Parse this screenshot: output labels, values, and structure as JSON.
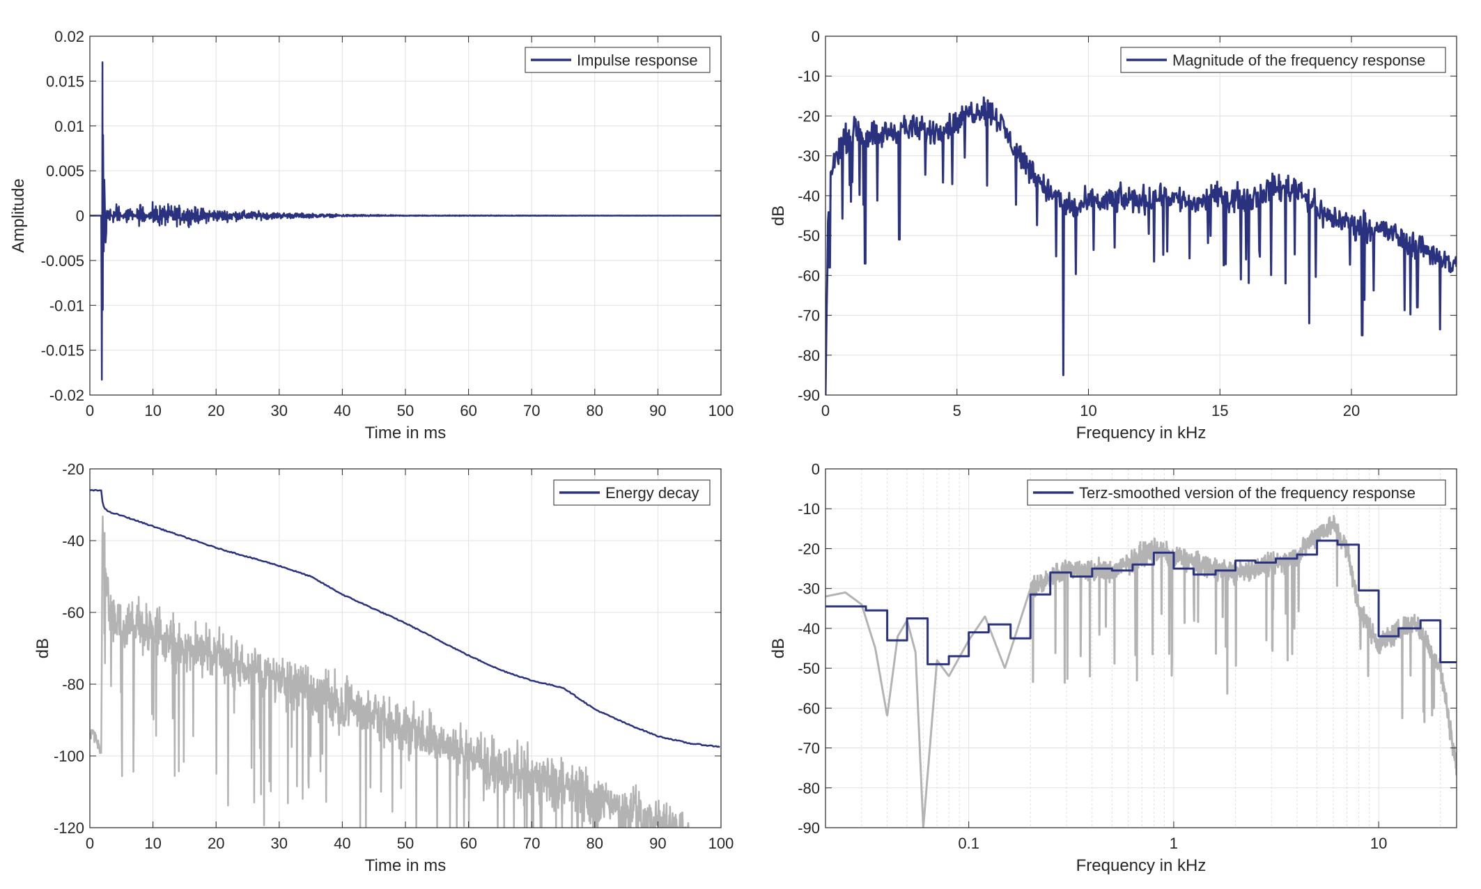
{
  "colors": {
    "series_blue": "#2a3280",
    "series_gray": "#b3b3b3",
    "axis": "#262626",
    "grid": "#e1e1e1",
    "background": "#ffffff"
  },
  "chart_data": [
    {
      "type": "line",
      "title": "",
      "xlabel": "Time in ms",
      "ylabel": "Amplitude",
      "xlim": [
        0,
        100
      ],
      "ylim": [
        -0.02,
        0.02
      ],
      "x_scale": "linear",
      "x_ticks": [
        0,
        10,
        20,
        30,
        40,
        50,
        60,
        70,
        80,
        90,
        100
      ],
      "x_tick_labels": [
        "0",
        "10",
        "20",
        "30",
        "40",
        "50",
        "60",
        "70",
        "80",
        "90",
        "100"
      ],
      "y_ticks": [
        -0.02,
        -0.015,
        -0.01,
        -0.005,
        0,
        0.005,
        0.01,
        0.015,
        0.02
      ],
      "y_tick_labels": [
        "-0.02",
        "-0.015",
        "-0.01",
        "-0.005",
        "0",
        "0.005",
        "0.01",
        "0.015",
        "0.02"
      ],
      "grid": true,
      "legend": {
        "position": "top-right",
        "entries": [
          "Impulse response"
        ]
      },
      "series": [
        {
          "name": "Impulse response",
          "color": "#2a3280",
          "description_points": {
            "x": [
              0,
              1.8,
              1.9,
              2.0,
              2.05,
              2.1,
              2.2,
              2.3,
              2.5,
              3,
              4,
              6,
              8,
              10,
              15,
              20,
              30,
              40,
              50,
              100
            ],
            "y": [
              0,
              0,
              -0.0183,
              0.0171,
              -0.0105,
              0.009,
              -0.004,
              0.004,
              -0.003,
              0.0025,
              -0.0025,
              0.002,
              -0.0018,
              0.0015,
              0.0012,
              0.0008,
              0.0004,
              0.00015,
              5e-05,
              0
            ]
          }
        }
      ]
    },
    {
      "type": "line",
      "title": "",
      "xlabel": "Frequency in kHz",
      "ylabel": "dB",
      "xlim": [
        0,
        24
      ],
      "ylim": [
        -90,
        0
      ],
      "x_scale": "linear",
      "x_ticks": [
        0,
        5,
        10,
        15,
        20
      ],
      "x_tick_labels": [
        "0",
        "5",
        "10",
        "15",
        "20"
      ],
      "y_ticks": [
        0,
        -10,
        -20,
        -30,
        -40,
        -50,
        -60,
        -70,
        -80,
        -90
      ],
      "y_tick_labels": [
        "0",
        "-10",
        "-20",
        "-30",
        "-40",
        "-50",
        "-60",
        "-70",
        "-80",
        "-90"
      ],
      "grid": true,
      "legend": {
        "position": "top-right",
        "entries": [
          "Magnitude of the frequency response"
        ]
      },
      "series": [
        {
          "name": "Magnitude of the frequency response",
          "color": "#2a3280",
          "x": [
            0,
            0.1,
            0.2,
            0.5,
            1,
            1.5,
            2,
            3,
            4,
            5,
            5.5,
            6,
            6.5,
            7,
            7.5,
            8,
            8.5,
            9,
            9.5,
            10,
            11,
            12,
            13,
            14,
            15,
            16,
            17,
            18,
            19,
            20,
            21,
            22,
            23,
            24
          ],
          "y": [
            -90,
            -45,
            -35,
            -28,
            -24,
            -24,
            -25,
            -23,
            -24,
            -22,
            -19,
            -18,
            -20,
            -26,
            -31,
            -35,
            -39,
            -42,
            -43,
            -42,
            -41,
            -41,
            -40,
            -42,
            -40,
            -41,
            -38,
            -38,
            -45,
            -47,
            -48,
            -51,
            -54,
            -58
          ],
          "dips": [
            {
              "x": 0.15,
              "y": -58
            },
            {
              "x": 1.5,
              "y": -57
            },
            {
              "x": 2.8,
              "y": -51
            },
            {
              "x": 9.05,
              "y": -85
            },
            {
              "x": 11,
              "y": -53
            },
            {
              "x": 13,
              "y": -54
            },
            {
              "x": 16,
              "y": -56
            },
            {
              "x": 17.5,
              "y": -62
            },
            {
              "x": 18.4,
              "y": -72
            },
            {
              "x": 20.4,
              "y": -75
            },
            {
              "x": 22.5,
              "y": -68
            }
          ]
        }
      ]
    },
    {
      "type": "line",
      "title": "",
      "xlabel": "Time in ms",
      "ylabel": "dB",
      "xlim": [
        0,
        100
      ],
      "ylim": [
        -120,
        -20
      ],
      "x_scale": "linear",
      "x_ticks": [
        0,
        10,
        20,
        30,
        40,
        50,
        60,
        70,
        80,
        90,
        100
      ],
      "x_tick_labels": [
        "0",
        "10",
        "20",
        "30",
        "40",
        "50",
        "60",
        "70",
        "80",
        "90",
        "100"
      ],
      "y_ticks": [
        -20,
        -40,
        -60,
        -80,
        -100,
        -120
      ],
      "y_tick_labels": [
        "-20",
        "-40",
        "-60",
        "-80",
        "-100",
        "-120"
      ],
      "grid": true,
      "legend": {
        "position": "top-right",
        "entries": [
          "Energy decay"
        ]
      },
      "series": [
        {
          "name": "Energy decay",
          "color": "#2a3280",
          "x": [
            0,
            1.8,
            2,
            2.3,
            3,
            5,
            10,
            15,
            20,
            25,
            30,
            35,
            40,
            45,
            50,
            55,
            60,
            65,
            70,
            75,
            80,
            85,
            90,
            95,
            100
          ],
          "y": [
            -26,
            -26,
            -29,
            -31,
            -32,
            -33,
            -36,
            -39,
            -42,
            -44.5,
            -47,
            -50,
            -55,
            -59,
            -63,
            -67.5,
            -72,
            -76,
            -79,
            -81,
            -87,
            -91,
            -94.5,
            -96.5,
            -97.5
          ]
        },
        {
          "name": "",
          "color": "#b3b3b3",
          "x": [
            0,
            1,
            1.8,
            2,
            3,
            5,
            10,
            15,
            20,
            30,
            40,
            50,
            60,
            70,
            80,
            90,
            95
          ],
          "y": [
            -93,
            -95,
            -100,
            -35,
            -57,
            -62,
            -63,
            -68,
            -70,
            -76,
            -84,
            -91,
            -98,
            -104,
            -110,
            -117,
            -120
          ]
        }
      ]
    },
    {
      "type": "line",
      "title": "",
      "xlabel": "Frequency in kHz",
      "ylabel": "dB",
      "xlim": [
        0.02,
        24
      ],
      "ylim": [
        -90,
        0
      ],
      "x_scale": "log",
      "x_ticks": [
        0.1,
        1,
        10
      ],
      "x_tick_labels": [
        "0.1",
        "1",
        "10"
      ],
      "y_ticks": [
        0,
        -10,
        -20,
        -30,
        -40,
        -50,
        -60,
        -70,
        -80,
        -90
      ],
      "y_tick_labels": [
        "0",
        "-10",
        "-20",
        "-30",
        "-40",
        "-50",
        "-60",
        "-70",
        "-80",
        "-90"
      ],
      "grid": true,
      "legend": {
        "position": "top-right",
        "entries": [
          "Terz-smoothed version of the frequency response"
        ]
      },
      "series": [
        {
          "name": "Terz-smoothed version of the frequency response",
          "color": "#2a3280",
          "band_edges": [
            0.02,
            0.0315,
            0.04,
            0.05,
            0.063,
            0.08,
            0.1,
            0.125,
            0.16,
            0.2,
            0.25,
            0.315,
            0.4,
            0.5,
            0.63,
            0.8,
            1.0,
            1.25,
            1.6,
            2.0,
            2.5,
            3.15,
            4.0,
            5.0,
            6.3,
            8.0,
            10.0,
            12.5,
            16.0,
            20.0,
            24.0
          ],
          "values": [
            -34.5,
            -35.5,
            -43,
            -37.5,
            -49,
            -47,
            -41,
            -39,
            -42.5,
            -31.5,
            -26,
            -27,
            -25,
            -25.5,
            -24,
            -21,
            -25,
            -26.5,
            -25.5,
            -23,
            -23.5,
            -22.5,
            -21.5,
            -18,
            -19,
            -30.5,
            -42,
            -40,
            -38,
            -48.5
          ]
        },
        {
          "name": "",
          "color": "#b3b3b3",
          "x": [
            0.02,
            0.025,
            0.03,
            0.035,
            0.04,
            0.045,
            0.05,
            0.055,
            0.06,
            0.07,
            0.08,
            0.1,
            0.12,
            0.15,
            0.2,
            0.3,
            0.5,
            0.8,
            1,
            2,
            3,
            4,
            5,
            6,
            7,
            8,
            10,
            15,
            20,
            24
          ],
          "y": [
            -32,
            -31,
            -34,
            -45,
            -62,
            -42,
            -38,
            -46,
            -90,
            -48,
            -52,
            -43,
            -37,
            -50,
            -30,
            -25,
            -26,
            -20,
            -22,
            -26,
            -24,
            -22,
            -16,
            -14,
            -20,
            -35,
            -44,
            -38,
            -50,
            -75
          ]
        }
      ]
    }
  ]
}
